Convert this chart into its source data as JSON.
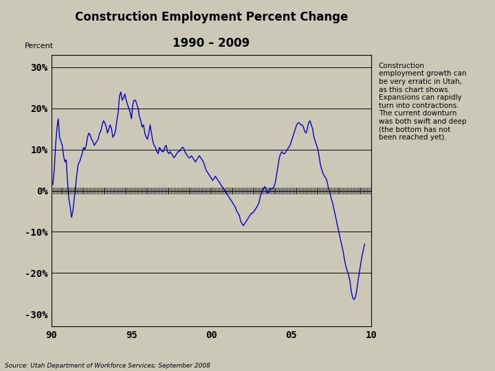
{
  "title_line1": "Construction Employment Percent Change",
  "title_line2": "1990 – 2009",
  "ylabel": "Percent",
  "source_text": "Source: Utah Department of Workforce Services; September 2008",
  "annotation_text": "Construction\nemployment growth can\nbe very erratic in Utah,\nas this chart shows.\nExpansions can rapidly\nturn into contractions.\nThe current downturn\nwas both swift and deep\n(the bottom has not\nbeen reached yet).",
  "background_color": "#ccc8b8",
  "plot_bg_color": "#ccc8b8",
  "line_color": "#0000cc",
  "yticks": [
    -30,
    -20,
    -10,
    0,
    10,
    20,
    30
  ],
  "ytick_labels": [
    "-30%",
    "-20%",
    "-10%",
    "0%",
    "10%",
    "20%",
    "30%"
  ],
  "xticks": [
    1990,
    1995,
    2000,
    2005,
    2010
  ],
  "xtick_labels": [
    "90",
    "95",
    "00",
    "05",
    "10"
  ],
  "ylim": [
    -33,
    33
  ],
  "xlim_start": 1990,
  "xlim_end": 2010,
  "hlines": [
    -20,
    -10,
    0,
    10,
    20,
    30
  ],
  "data": [
    [
      1990.0,
      2.0
    ],
    [
      1990.083,
      1.5
    ],
    [
      1990.167,
      5.0
    ],
    [
      1990.25,
      11.0
    ],
    [
      1990.333,
      15.0
    ],
    [
      1990.417,
      17.5
    ],
    [
      1990.5,
      13.0
    ],
    [
      1990.583,
      12.0
    ],
    [
      1990.667,
      11.0
    ],
    [
      1990.75,
      8.5
    ],
    [
      1990.833,
      7.0
    ],
    [
      1990.917,
      7.5
    ],
    [
      1991.0,
      2.0
    ],
    [
      1991.083,
      -2.0
    ],
    [
      1991.167,
      -4.0
    ],
    [
      1991.25,
      -6.5
    ],
    [
      1991.333,
      -5.0
    ],
    [
      1991.417,
      -2.0
    ],
    [
      1991.5,
      1.0
    ],
    [
      1991.583,
      4.0
    ],
    [
      1991.667,
      6.5
    ],
    [
      1991.75,
      7.0
    ],
    [
      1991.833,
      8.0
    ],
    [
      1991.917,
      9.0
    ],
    [
      1992.0,
      10.5
    ],
    [
      1992.083,
      10.0
    ],
    [
      1992.167,
      11.0
    ],
    [
      1992.25,
      13.0
    ],
    [
      1992.333,
      14.0
    ],
    [
      1992.417,
      13.5
    ],
    [
      1992.5,
      12.5
    ],
    [
      1992.583,
      12.0
    ],
    [
      1992.667,
      11.0
    ],
    [
      1992.75,
      11.5
    ],
    [
      1992.833,
      12.0
    ],
    [
      1992.917,
      12.5
    ],
    [
      1993.0,
      14.0
    ],
    [
      1993.083,
      14.5
    ],
    [
      1993.167,
      16.0
    ],
    [
      1993.25,
      17.0
    ],
    [
      1993.333,
      16.5
    ],
    [
      1993.417,
      15.5
    ],
    [
      1993.5,
      14.0
    ],
    [
      1993.583,
      15.0
    ],
    [
      1993.667,
      16.0
    ],
    [
      1993.75,
      15.0
    ],
    [
      1993.833,
      13.0
    ],
    [
      1993.917,
      13.5
    ],
    [
      1994.0,
      14.5
    ],
    [
      1994.083,
      17.0
    ],
    [
      1994.167,
      19.0
    ],
    [
      1994.25,
      23.0
    ],
    [
      1994.333,
      24.0
    ],
    [
      1994.417,
      22.0
    ],
    [
      1994.5,
      22.5
    ],
    [
      1994.583,
      23.5
    ],
    [
      1994.667,
      22.0
    ],
    [
      1994.75,
      21.0
    ],
    [
      1994.833,
      20.0
    ],
    [
      1994.917,
      19.0
    ],
    [
      1995.0,
      17.5
    ],
    [
      1995.083,
      21.0
    ],
    [
      1995.167,
      22.0
    ],
    [
      1995.25,
      22.0
    ],
    [
      1995.333,
      21.0
    ],
    [
      1995.417,
      20.0
    ],
    [
      1995.5,
      18.0
    ],
    [
      1995.583,
      17.0
    ],
    [
      1995.667,
      15.5
    ],
    [
      1995.75,
      16.0
    ],
    [
      1995.833,
      14.0
    ],
    [
      1995.917,
      13.0
    ],
    [
      1996.0,
      12.5
    ],
    [
      1996.083,
      14.0
    ],
    [
      1996.167,
      16.0
    ],
    [
      1996.25,
      14.0
    ],
    [
      1996.333,
      12.0
    ],
    [
      1996.417,
      11.0
    ],
    [
      1996.5,
      10.5
    ],
    [
      1996.583,
      9.5
    ],
    [
      1996.667,
      9.0
    ],
    [
      1996.75,
      10.5
    ],
    [
      1996.833,
      10.0
    ],
    [
      1996.917,
      9.5
    ],
    [
      1997.0,
      9.5
    ],
    [
      1997.083,
      10.5
    ],
    [
      1997.167,
      11.0
    ],
    [
      1997.25,
      9.5
    ],
    [
      1997.333,
      9.0
    ],
    [
      1997.417,
      9.5
    ],
    [
      1997.5,
      9.0
    ],
    [
      1997.583,
      8.5
    ],
    [
      1997.667,
      8.0
    ],
    [
      1997.75,
      8.5
    ],
    [
      1997.833,
      9.0
    ],
    [
      1997.917,
      9.5
    ],
    [
      1998.0,
      9.5
    ],
    [
      1998.083,
      10.0
    ],
    [
      1998.167,
      10.5
    ],
    [
      1998.25,
      10.5
    ],
    [
      1998.333,
      9.5
    ],
    [
      1998.417,
      9.0
    ],
    [
      1998.5,
      8.5
    ],
    [
      1998.583,
      8.0
    ],
    [
      1998.667,
      8.0
    ],
    [
      1998.75,
      8.5
    ],
    [
      1998.833,
      8.0
    ],
    [
      1998.917,
      7.5
    ],
    [
      1999.0,
      7.0
    ],
    [
      1999.083,
      7.5
    ],
    [
      1999.167,
      8.0
    ],
    [
      1999.25,
      8.5
    ],
    [
      1999.333,
      8.0
    ],
    [
      1999.417,
      7.5
    ],
    [
      1999.5,
      7.0
    ],
    [
      1999.583,
      6.0
    ],
    [
      1999.667,
      5.0
    ],
    [
      1999.75,
      4.5
    ],
    [
      1999.833,
      4.0
    ],
    [
      1999.917,
      3.5
    ],
    [
      2000.0,
      3.0
    ],
    [
      2000.083,
      2.5
    ],
    [
      2000.167,
      3.0
    ],
    [
      2000.25,
      3.5
    ],
    [
      2000.333,
      3.0
    ],
    [
      2000.417,
      2.5
    ],
    [
      2000.5,
      2.0
    ],
    [
      2000.583,
      1.5
    ],
    [
      2000.667,
      1.0
    ],
    [
      2000.75,
      0.5
    ],
    [
      2000.833,
      0.0
    ],
    [
      2000.917,
      -0.5
    ],
    [
      2001.0,
      -1.0
    ],
    [
      2001.083,
      -1.5
    ],
    [
      2001.167,
      -2.0
    ],
    [
      2001.25,
      -2.5
    ],
    [
      2001.333,
      -3.0
    ],
    [
      2001.417,
      -3.5
    ],
    [
      2001.5,
      -4.0
    ],
    [
      2001.583,
      -5.0
    ],
    [
      2001.667,
      -5.5
    ],
    [
      2001.75,
      -6.0
    ],
    [
      2001.833,
      -7.5
    ],
    [
      2001.917,
      -8.0
    ],
    [
      2002.0,
      -8.5
    ],
    [
      2002.083,
      -8.0
    ],
    [
      2002.167,
      -7.5
    ],
    [
      2002.25,
      -7.0
    ],
    [
      2002.333,
      -6.5
    ],
    [
      2002.417,
      -6.0
    ],
    [
      2002.5,
      -5.5
    ],
    [
      2002.583,
      -5.5
    ],
    [
      2002.667,
      -5.0
    ],
    [
      2002.75,
      -4.5
    ],
    [
      2002.833,
      -4.0
    ],
    [
      2002.917,
      -3.5
    ],
    [
      2003.0,
      -2.5
    ],
    [
      2003.083,
      -1.0
    ],
    [
      2003.167,
      0.0
    ],
    [
      2003.25,
      0.5
    ],
    [
      2003.333,
      1.0
    ],
    [
      2003.417,
      0.5
    ],
    [
      2003.5,
      -0.5
    ],
    [
      2003.583,
      -0.5
    ],
    [
      2003.667,
      0.5
    ],
    [
      2003.75,
      0.5
    ],
    [
      2003.833,
      0.5
    ],
    [
      2003.917,
      1.0
    ],
    [
      2004.0,
      2.0
    ],
    [
      2004.083,
      4.0
    ],
    [
      2004.167,
      6.0
    ],
    [
      2004.25,
      8.0
    ],
    [
      2004.333,
      9.0
    ],
    [
      2004.417,
      9.5
    ],
    [
      2004.5,
      9.0
    ],
    [
      2004.583,
      9.0
    ],
    [
      2004.667,
      9.5
    ],
    [
      2004.75,
      10.0
    ],
    [
      2004.833,
      10.5
    ],
    [
      2004.917,
      11.0
    ],
    [
      2005.0,
      12.0
    ],
    [
      2005.083,
      13.0
    ],
    [
      2005.167,
      14.0
    ],
    [
      2005.25,
      15.0
    ],
    [
      2005.333,
      16.0
    ],
    [
      2005.417,
      16.5
    ],
    [
      2005.5,
      16.5
    ],
    [
      2005.583,
      16.0
    ],
    [
      2005.667,
      16.0
    ],
    [
      2005.75,
      15.5
    ],
    [
      2005.833,
      14.5
    ],
    [
      2005.917,
      14.0
    ],
    [
      2006.0,
      15.0
    ],
    [
      2006.083,
      16.5
    ],
    [
      2006.167,
      17.0
    ],
    [
      2006.25,
      16.0
    ],
    [
      2006.333,
      15.0
    ],
    [
      2006.417,
      13.0
    ],
    [
      2006.5,
      12.0
    ],
    [
      2006.583,
      11.0
    ],
    [
      2006.667,
      10.0
    ],
    [
      2006.75,
      8.0
    ],
    [
      2006.833,
      6.0
    ],
    [
      2006.917,
      5.0
    ],
    [
      2007.0,
      4.0
    ],
    [
      2007.083,
      3.5
    ],
    [
      2007.167,
      3.0
    ],
    [
      2007.25,
      2.0
    ],
    [
      2007.333,
      0.5
    ],
    [
      2007.417,
      -0.5
    ],
    [
      2007.5,
      -2.0
    ],
    [
      2007.583,
      -3.0
    ],
    [
      2007.667,
      -4.5
    ],
    [
      2007.75,
      -6.0
    ],
    [
      2007.833,
      -7.5
    ],
    [
      2007.917,
      -9.0
    ],
    [
      2008.0,
      -10.5
    ],
    [
      2008.083,
      -12.0
    ],
    [
      2008.167,
      -13.5
    ],
    [
      2008.25,
      -15.0
    ],
    [
      2008.333,
      -17.0
    ],
    [
      2008.417,
      -18.5
    ],
    [
      2008.5,
      -19.5
    ],
    [
      2008.583,
      -20.5
    ],
    [
      2008.667,
      -22.0
    ],
    [
      2008.75,
      -24.5
    ],
    [
      2008.833,
      -26.0
    ],
    [
      2008.917,
      -26.5
    ],
    [
      2009.0,
      -26.0
    ],
    [
      2009.083,
      -24.5
    ],
    [
      2009.167,
      -22.0
    ],
    [
      2009.25,
      -20.0
    ],
    [
      2009.333,
      -18.0
    ],
    [
      2009.417,
      -16.0
    ],
    [
      2009.5,
      -14.5
    ],
    [
      2009.583,
      -13.0
    ]
  ]
}
